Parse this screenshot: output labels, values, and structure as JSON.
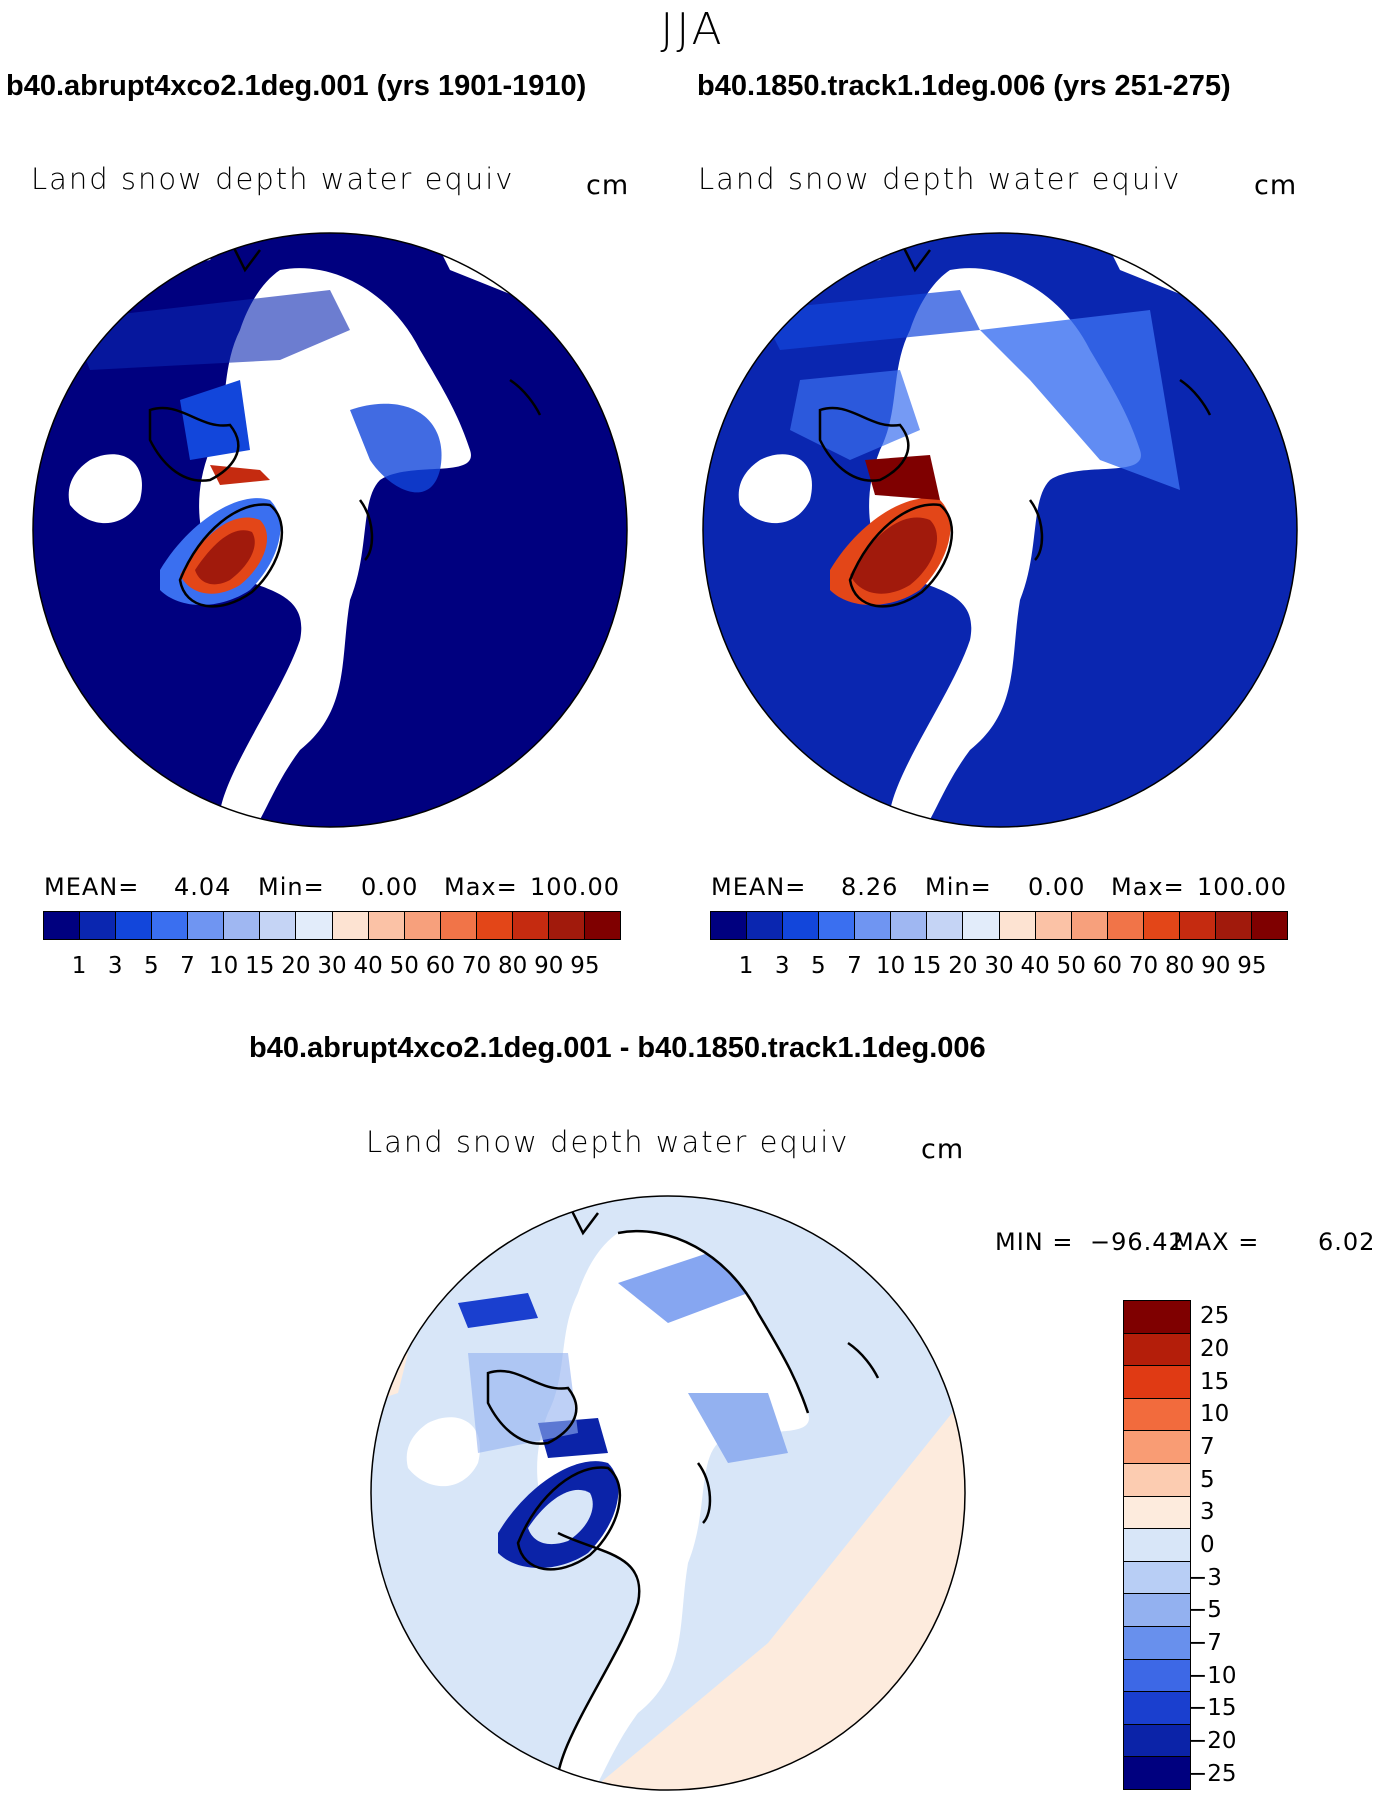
{
  "season": "JJA",
  "panels": {
    "left": {
      "run_title": "b40.abrupt4xco2.1deg.001 (yrs 1901-1910)",
      "variable": "Land snow depth water equiv",
      "units": "cm",
      "stats": {
        "mean_label": "MEAN=",
        "mean": "4.04",
        "min_label": "Min=",
        "min": "0.00",
        "max_label": "Max=",
        "max": "100.00"
      }
    },
    "right": {
      "run_title": "b40.1850.track1.1deg.006 (yrs 251-275)",
      "variable": "Land snow depth water equiv",
      "units": "cm",
      "stats": {
        "mean_label": "MEAN=",
        "mean": "8.26",
        "min_label": "Min=",
        "min": "0.00",
        "max_label": "Max=",
        "max": "100.00"
      }
    },
    "diff": {
      "run_title": "b40.abrupt4xco2.1deg.001 - b40.1850.track1.1deg.006",
      "variable": "Land snow depth water equiv",
      "units": "cm",
      "stats": {
        "min_label": "MIN =",
        "min": "−96.42",
        "max_label": "MAX =",
        "max": "6.02"
      }
    }
  },
  "colorbar_abs": {
    "colors": [
      "#00007f",
      "#0a26b0",
      "#1246db",
      "#3a6ff0",
      "#6f95f2",
      "#9fb7f2",
      "#c5d4f5",
      "#e2ecfa",
      "#fde3d2",
      "#fbc2a6",
      "#f7a07c",
      "#f17448",
      "#e34618",
      "#c52b10",
      "#a11a0c",
      "#7f0000"
    ],
    "ticks": [
      "1",
      "3",
      "5",
      "7",
      "10",
      "15",
      "20",
      "30",
      "40",
      "50",
      "60",
      "70",
      "80",
      "90",
      "95"
    ]
  },
  "colorbar_diff": {
    "colors": [
      "#7f0000",
      "#b41e0a",
      "#e03a14",
      "#f26b3d",
      "#f99c74",
      "#fcccb1",
      "#fdebdd",
      "#d8e6f8",
      "#b8cef5",
      "#93b1f0",
      "#6890ed",
      "#3d68e6",
      "#1a3fcf",
      "#0b23a8",
      "#00007f"
    ],
    "ticks": [
      "25",
      "20",
      "15",
      "10",
      "7",
      "5",
      "3",
      "0",
      "−3",
      "−5",
      "−7",
      "−10",
      "−15",
      "−20",
      "−25"
    ]
  }
}
